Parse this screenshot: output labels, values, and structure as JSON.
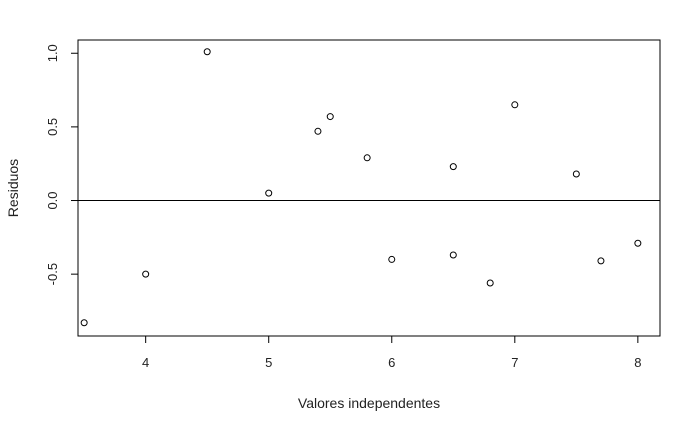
{
  "chart_data": {
    "type": "scatter",
    "title": "",
    "xlabel": "Valores independentes",
    "ylabel": "Residuos",
    "xlim": [
      3.45,
      8.18
    ],
    "ylim": [
      -0.92,
      1.09
    ],
    "xticks": [
      4,
      5,
      6,
      7,
      8
    ],
    "xtick_labels": [
      "4",
      "5",
      "6",
      "7",
      "8"
    ],
    "yticks": [
      -0.5,
      0.0,
      0.5,
      1.0
    ],
    "ytick_labels": [
      "-0.5",
      "0.0",
      "0.5",
      "1.0"
    ],
    "reference_line": {
      "y": 0
    },
    "grid": false,
    "points": [
      {
        "x": 3.5,
        "y": -0.83
      },
      {
        "x": 4.0,
        "y": -0.5
      },
      {
        "x": 4.5,
        "y": 1.01
      },
      {
        "x": 5.0,
        "y": 0.05
      },
      {
        "x": 5.4,
        "y": 0.47
      },
      {
        "x": 5.5,
        "y": 0.57
      },
      {
        "x": 5.8,
        "y": 0.29
      },
      {
        "x": 6.0,
        "y": -0.4
      },
      {
        "x": 6.5,
        "y": 0.23
      },
      {
        "x": 6.5,
        "y": -0.37
      },
      {
        "x": 6.8,
        "y": -0.56
      },
      {
        "x": 7.0,
        "y": 0.65
      },
      {
        "x": 7.5,
        "y": 0.18
      },
      {
        "x": 7.7,
        "y": -0.41
      },
      {
        "x": 8.0,
        "y": -0.29
      }
    ],
    "colors": {
      "points": "#000000",
      "axes": "#000000",
      "text": "#222222"
    }
  }
}
